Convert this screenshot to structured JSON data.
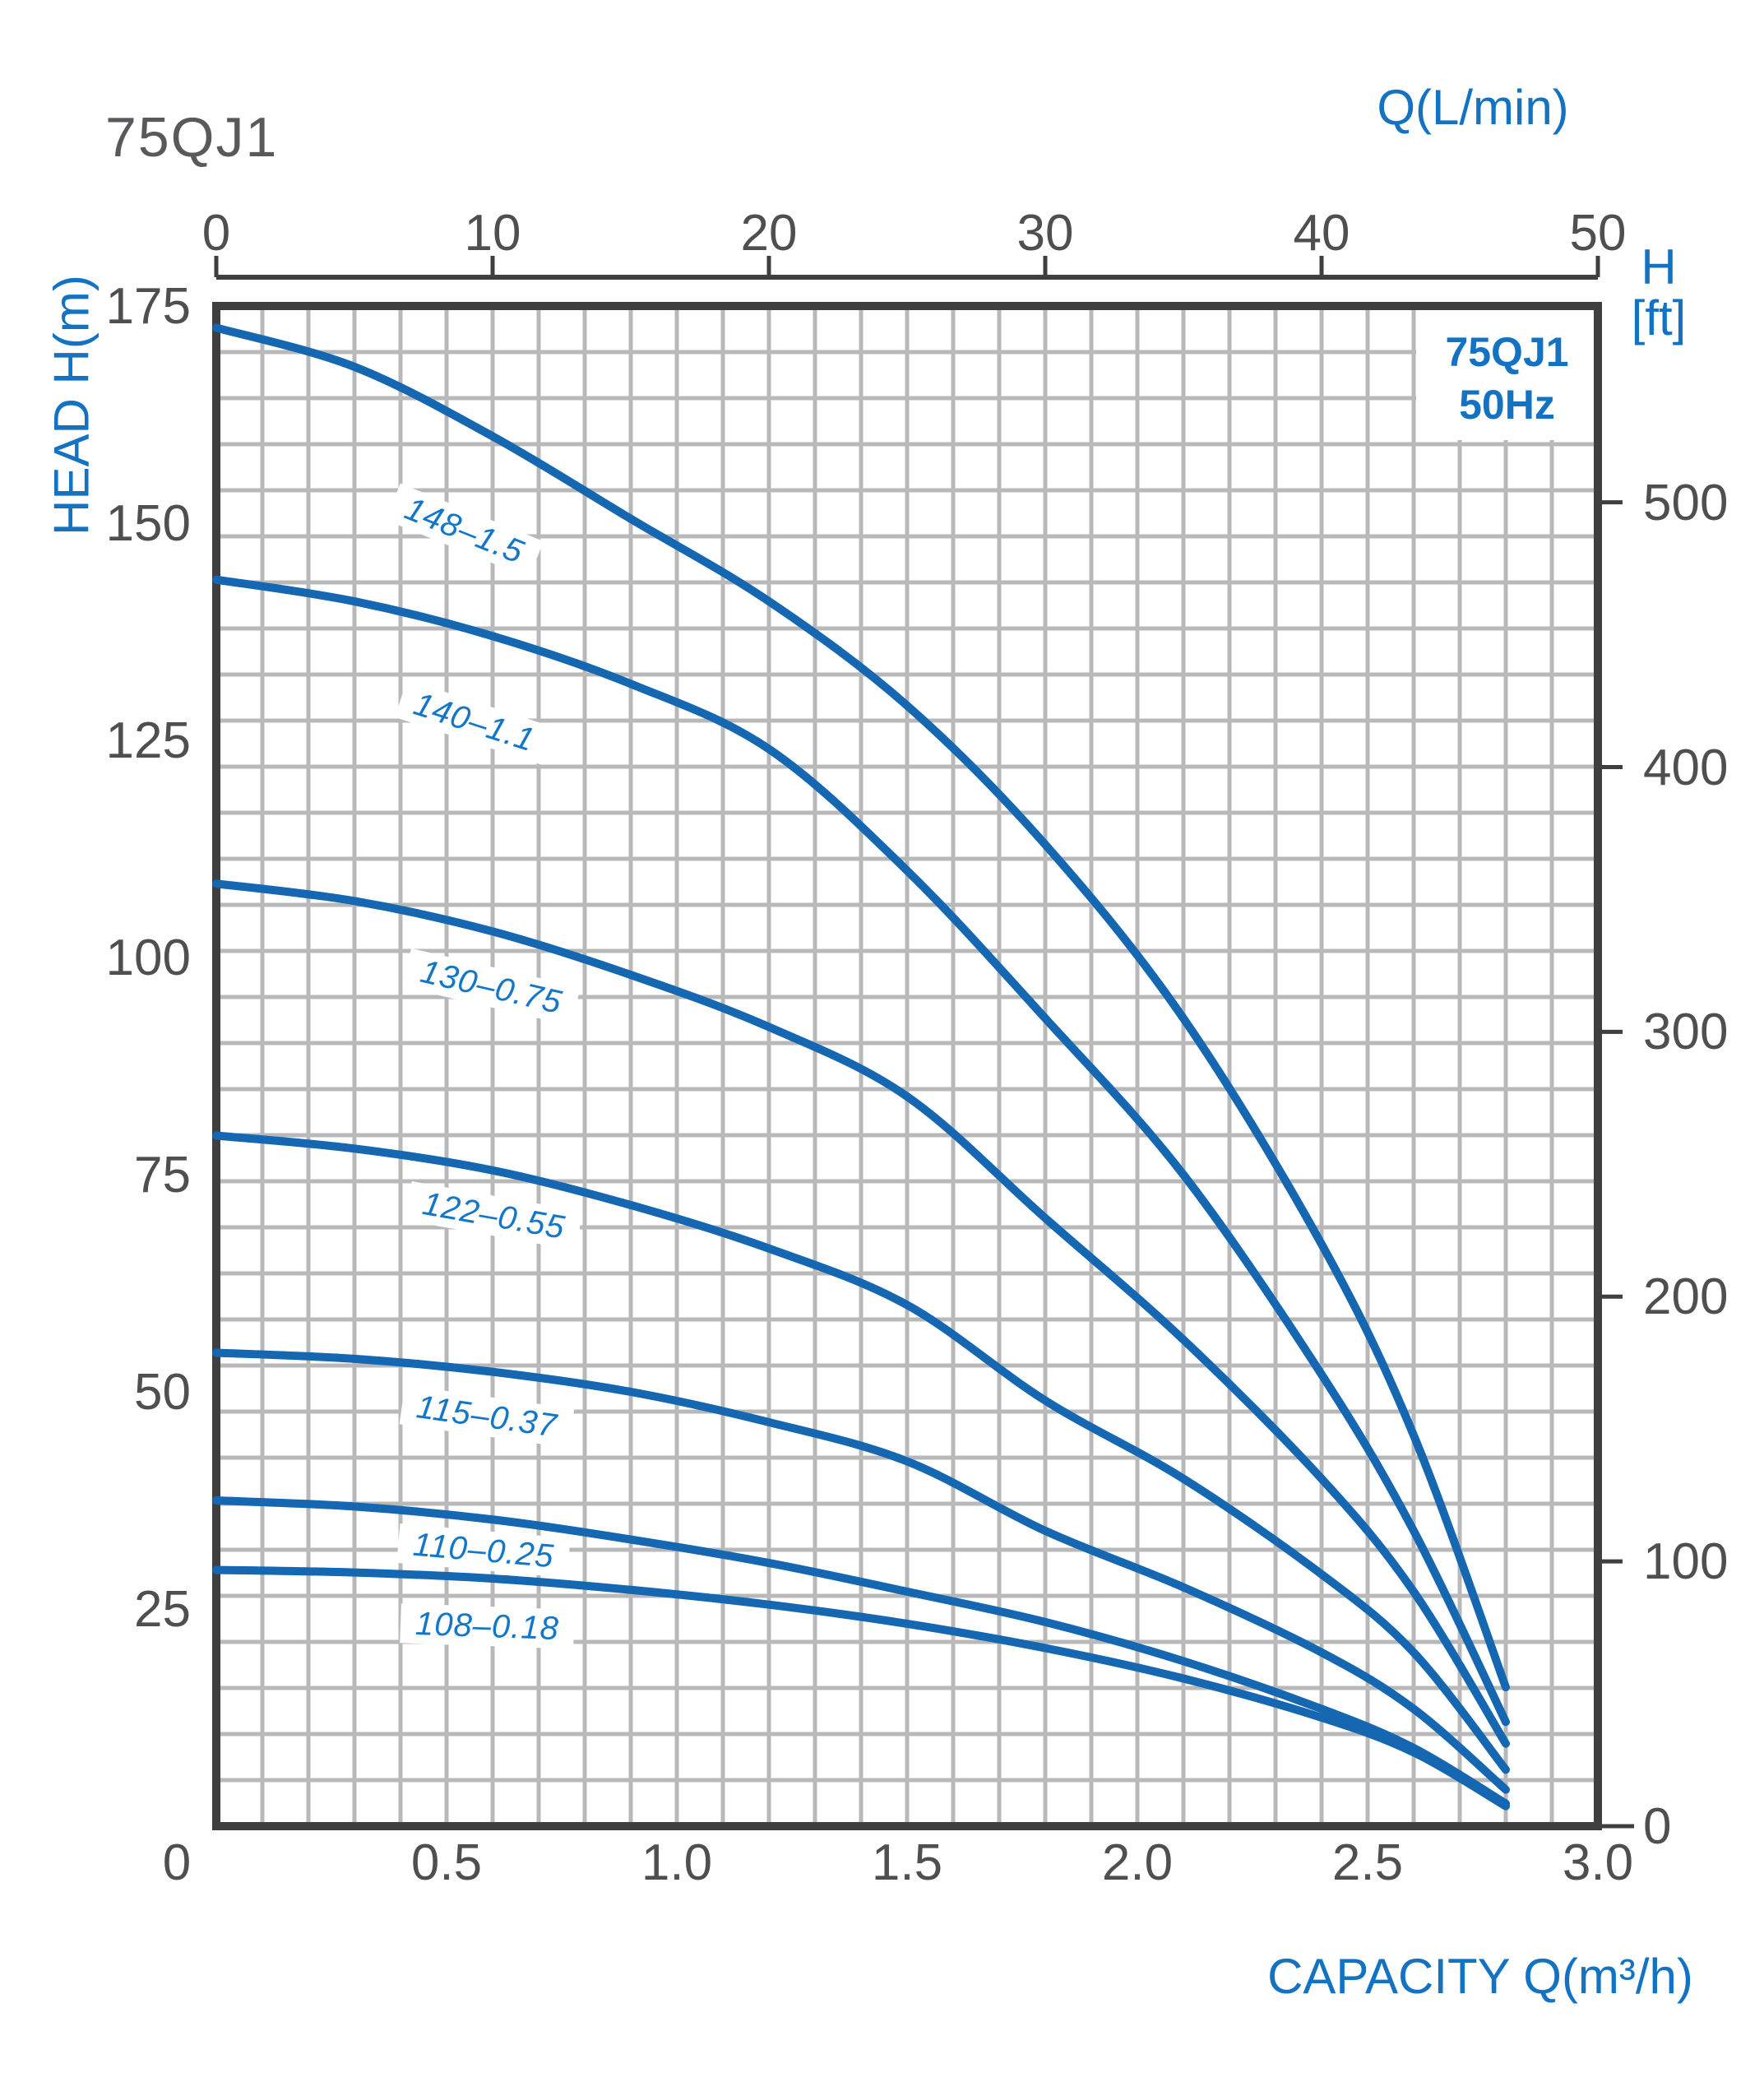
{
  "page": {
    "title": "75QJ1"
  },
  "axes": {
    "top": {
      "label": "Q(L/min)",
      "ticks": [
        "0",
        "10",
        "20",
        "30",
        "40",
        "50"
      ]
    },
    "left": {
      "label": "HEAD H(m)",
      "ticks": [
        "175",
        "150",
        "125",
        "100",
        "75",
        "50",
        "25"
      ]
    },
    "right": {
      "label_line1": "H",
      "label_line2": "[ft]",
      "ticks": [
        "500",
        "400",
        "300",
        "200",
        "100",
        "0"
      ]
    },
    "bottom": {
      "label": "CAPACITY Q(m³/h)",
      "ticks": [
        "0",
        "0.5",
        "1.0",
        "1.5",
        "2.0",
        "2.5",
        "3.0"
      ]
    }
  },
  "legend": {
    "line1": "75QJ1",
    "line2": "50Hz"
  },
  "colors": {
    "curve": "#1467b0",
    "curve_label_text": "#1377c9",
    "accent_text": "#1472c2",
    "axis_line": "#3f3f3f",
    "tick_text": "#4f4f4f",
    "grid": "#b8b8b8",
    "title_text": "#58595b"
  },
  "chart_data": {
    "type": "line",
    "title": "75QJ1",
    "frequency": "50Hz",
    "xlabel": "CAPACITY Q(m³/h)",
    "xlabel_top": "Q(L/min)",
    "ylabel_left": "HEAD H(m)",
    "ylabel_right": "H [ft]",
    "xlim": [
      0,
      3.0
    ],
    "ylim": [
      0,
      175
    ],
    "x_top_lim": [
      0,
      50
    ],
    "y_right_lim_ft": [
      0,
      574
    ],
    "x_ticks_bottom": [
      0,
      0.5,
      1.0,
      1.5,
      2.0,
      2.5,
      3.0
    ],
    "x_ticks_top_lmin": [
      0,
      10,
      20,
      30,
      40,
      50
    ],
    "y_ticks_left_m": [
      175,
      150,
      125,
      100,
      75,
      50,
      25
    ],
    "y_ticks_right_ft": [
      500,
      400,
      300,
      200,
      100,
      0
    ],
    "grid": "on",
    "legend_position": "top-right-inside",
    "series": [
      {
        "name": "148-1.5",
        "points": [
          [
            0,
            172.5
          ],
          [
            0.3,
            168
          ],
          [
            0.6,
            160
          ],
          [
            0.9,
            150.5
          ],
          [
            1.2,
            141
          ],
          [
            1.5,
            129
          ],
          [
            1.8,
            113
          ],
          [
            2.1,
            93
          ],
          [
            2.4,
            67
          ],
          [
            2.6,
            45
          ],
          [
            2.8,
            16
          ]
        ],
        "label": "148–1.5",
        "label_pos": {
          "x": 565,
          "y": 645,
          "rot": 22
        }
      },
      {
        "name": "140-1.1",
        "points": [
          [
            0,
            143.5
          ],
          [
            0.3,
            141
          ],
          [
            0.6,
            137
          ],
          [
            0.9,
            131.5
          ],
          [
            1.2,
            124
          ],
          [
            1.5,
            110
          ],
          [
            1.8,
            93
          ],
          [
            2.1,
            75
          ],
          [
            2.4,
            52
          ],
          [
            2.6,
            34
          ],
          [
            2.8,
            12
          ]
        ],
        "label": "140–1.1",
        "label_pos": {
          "x": 577,
          "y": 878,
          "rot": 18
        }
      },
      {
        "name": "130-0.75",
        "points": [
          [
            0,
            108.5
          ],
          [
            0.3,
            106.5
          ],
          [
            0.6,
            103
          ],
          [
            0.9,
            98
          ],
          [
            1.2,
            92
          ],
          [
            1.5,
            84
          ],
          [
            1.8,
            70
          ],
          [
            2.1,
            56
          ],
          [
            2.4,
            40
          ],
          [
            2.6,
            27
          ],
          [
            2.8,
            9.5
          ]
        ],
        "label": "130–0.75",
        "label_pos": {
          "x": 597,
          "y": 1200,
          "rot": 13
        }
      },
      {
        "name": "122-0.55",
        "points": [
          [
            0,
            79.5
          ],
          [
            0.3,
            78
          ],
          [
            0.6,
            75.5
          ],
          [
            0.9,
            71.5
          ],
          [
            1.2,
            66.5
          ],
          [
            1.5,
            60
          ],
          [
            1.8,
            49
          ],
          [
            2.1,
            40
          ],
          [
            2.4,
            29
          ],
          [
            2.6,
            20
          ],
          [
            2.8,
            6.5
          ]
        ],
        "label": "122–0.55",
        "label_pos": {
          "x": 600,
          "y": 1478,
          "rot": 10
        }
      },
      {
        "name": "115-0.37",
        "points": [
          [
            0,
            54.5
          ],
          [
            0.3,
            53.8
          ],
          [
            0.6,
            52.3
          ],
          [
            0.9,
            50
          ],
          [
            1.2,
            46.5
          ],
          [
            1.5,
            42
          ],
          [
            1.8,
            34
          ],
          [
            2.1,
            27.5
          ],
          [
            2.4,
            20
          ],
          [
            2.6,
            13.5
          ],
          [
            2.8,
            4.2
          ]
        ],
        "label": "115–0.37",
        "label_pos": {
          "x": 592,
          "y": 1722,
          "rot": 8
        }
      },
      {
        "name": "110-0.25",
        "points": [
          [
            0,
            37.5
          ],
          [
            0.3,
            36.8
          ],
          [
            0.6,
            35.3
          ],
          [
            0.9,
            33
          ],
          [
            1.2,
            30.3
          ],
          [
            1.5,
            27
          ],
          [
            1.8,
            23.5
          ],
          [
            2.1,
            19
          ],
          [
            2.4,
            13.5
          ],
          [
            2.6,
            9
          ],
          [
            2.8,
            2.6
          ]
        ],
        "label": "110–0.25",
        "label_pos": {
          "x": 588,
          "y": 1885,
          "rot": 5
        }
      },
      {
        "name": "108-0.18",
        "points": [
          [
            0,
            29.5
          ],
          [
            0.3,
            29.2
          ],
          [
            0.6,
            28.5
          ],
          [
            0.9,
            27.2
          ],
          [
            1.2,
            25.5
          ],
          [
            1.5,
            23.3
          ],
          [
            1.8,
            20.5
          ],
          [
            2.1,
            17
          ],
          [
            2.4,
            12.5
          ],
          [
            2.6,
            8.5
          ],
          [
            2.8,
            2.3
          ]
        ],
        "label": "108–0.18",
        "label_pos": {
          "x": 592,
          "y": 1977,
          "rot": 2
        }
      }
    ]
  }
}
